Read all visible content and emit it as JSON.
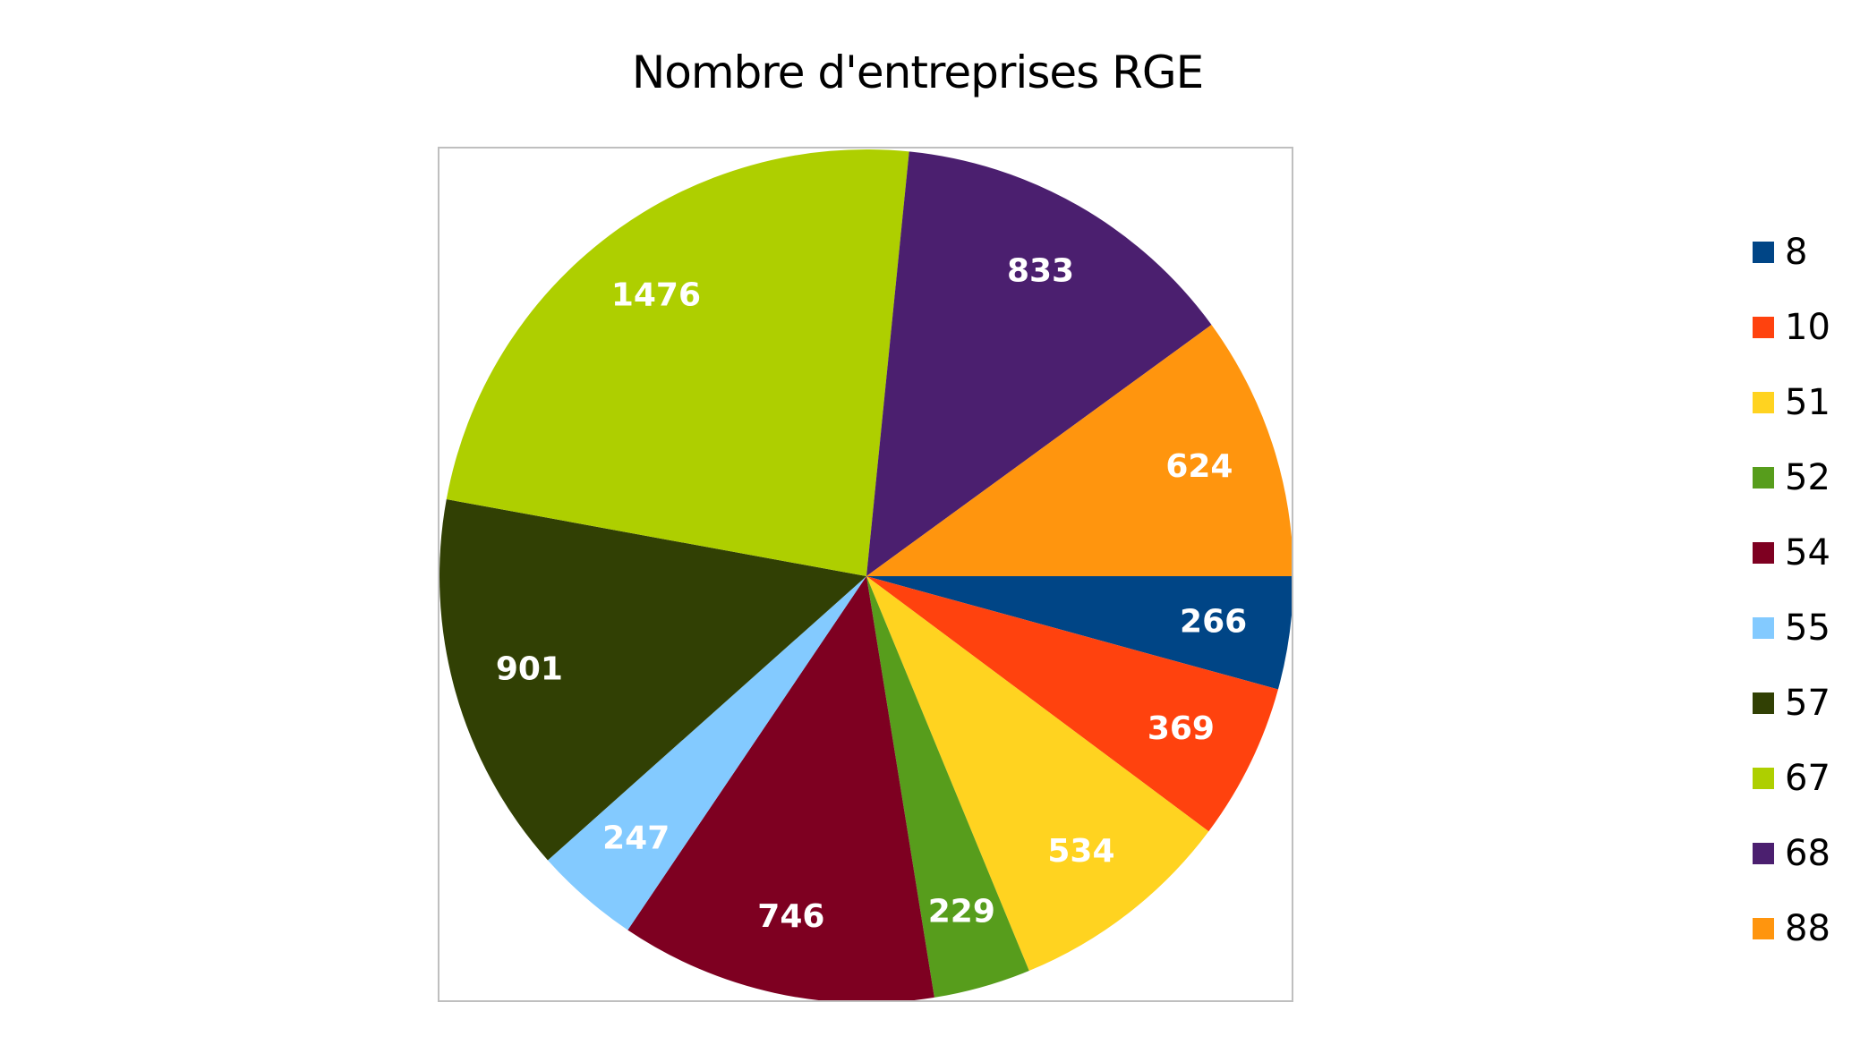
{
  "chart_data": {
    "type": "pie",
    "title": "Nombre d'entreprises RGE",
    "categories": [
      "8",
      "10",
      "51",
      "52",
      "54",
      "55",
      "57",
      "67",
      "68",
      "88"
    ],
    "values": [
      266,
      369,
      534,
      229,
      746,
      247,
      901,
      1476,
      833,
      624
    ],
    "colors": [
      "#004586",
      "#ff420e",
      "#ffd320",
      "#579d1c",
      "#7e0021",
      "#83caff",
      "#314004",
      "#aecf00",
      "#4b1f6f",
      "#ff950e"
    ],
    "start_angle": "3 o'clock",
    "direction": "clockwise",
    "data_labels": true,
    "legend_position": "right"
  },
  "legend": [
    {
      "label": "8",
      "color": "#004586"
    },
    {
      "label": "10",
      "color": "#ff420e"
    },
    {
      "label": "51",
      "color": "#ffd320"
    },
    {
      "label": "52",
      "color": "#579d1c"
    },
    {
      "label": "54",
      "color": "#7e0021"
    },
    {
      "label": "55",
      "color": "#83caff"
    },
    {
      "label": "57",
      "color": "#314004"
    },
    {
      "label": "67",
      "color": "#aecf00"
    },
    {
      "label": "68",
      "color": "#4b1f6f"
    },
    {
      "label": "88",
      "color": "#ff950e"
    }
  ]
}
